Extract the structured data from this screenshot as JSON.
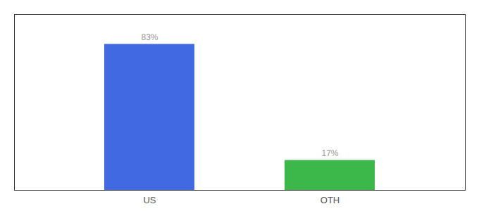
{
  "chart_data": {
    "type": "bar",
    "categories": [
      "US",
      "OTH"
    ],
    "values": [
      83,
      17
    ],
    "value_labels": [
      "83%",
      "17%"
    ],
    "colors": [
      "#4169E1",
      "#3CB84A"
    ],
    "ylim": [
      0,
      100
    ],
    "data_labels": true,
    "tick_labels": "x",
    "grid": false
  }
}
